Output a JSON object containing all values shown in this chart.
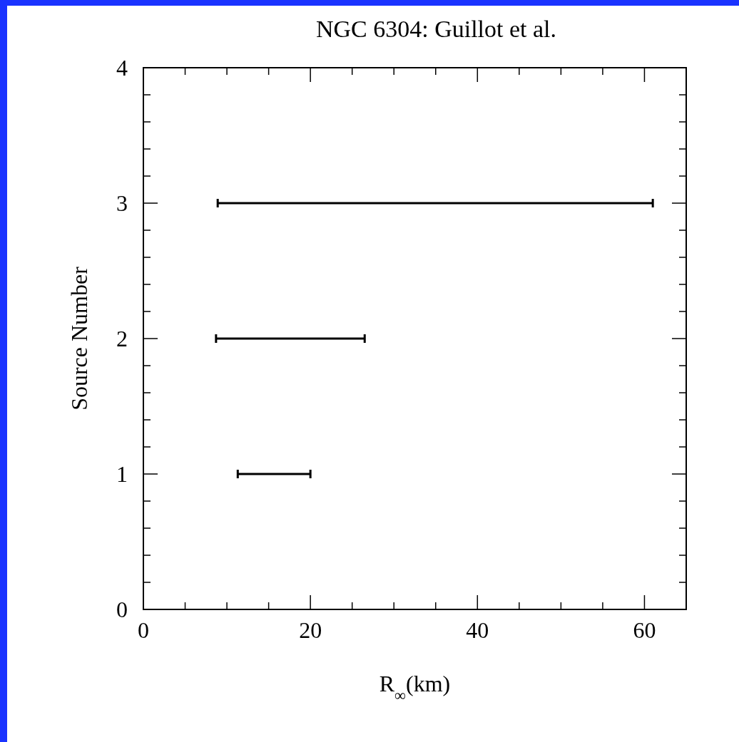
{
  "chart_data": {
    "type": "line",
    "title": "NGC 6304: Guillot et al.",
    "xlabel": "R$_{∞}$(km)",
    "ylabel": "Source Number",
    "series": [
      {
        "color": "#000000",
        "x": [
          11.3,
          20
        ],
        "values": [
          1,
          1
        ]
      },
      {
        "color": "#000000",
        "x": [
          8.7,
          26.5
        ],
        "values": [
          2,
          2
        ]
      },
      {
        "color": "#000000",
        "x": [
          8.9,
          61
        ],
        "values": [
          3,
          3
        ]
      }
    ],
    "marker": "none",
    "line_style": "solid",
    "xlim": [
      0,
      65
    ],
    "ylim": [
      0,
      4
    ],
    "xticks": [
      0,
      {
        "value": 5,
        "label": null
      },
      {
        "value": 10,
        "label": null
      },
      {
        "value": 15,
        "label": null
      },
      20,
      {
        "value": 25,
        "label": null
      },
      {
        "value": 30,
        "label": null
      },
      {
        "value": 35,
        "label": null
      },
      40,
      {
        "value": 45,
        "label": null
      },
      {
        "value": 50,
        "label": null
      },
      {
        "value": 55,
        "label": null
      },
      60,
      {
        "value": 65,
        "label": null
      }
    ],
    "yticks": [
      0,
      {
        "value": 0.2,
        "label": null
      },
      {
        "value": 0.4,
        "label": null
      },
      {
        "value": 0.6,
        "label": null
      },
      {
        "value": 0.8,
        "label": null
      },
      1,
      {
        "value": 1.2,
        "label": null
      },
      {
        "value": 1.4,
        "label": null
      },
      {
        "value": 1.6,
        "label": null
      },
      {
        "value": 1.8,
        "label": null
      },
      2,
      {
        "value": 2.2,
        "label": null
      },
      {
        "value": 2.4,
        "label": null
      },
      {
        "value": 2.6,
        "label": null
      },
      {
        "value": 2.8,
        "label": null
      },
      3,
      {
        "value": 3.2,
        "label": null
      },
      {
        "value": 3.4,
        "label": null
      },
      {
        "value": 3.6,
        "label": null
      },
      {
        "value": 3.8,
        "label": null
      },
      4
    ]
  }
}
